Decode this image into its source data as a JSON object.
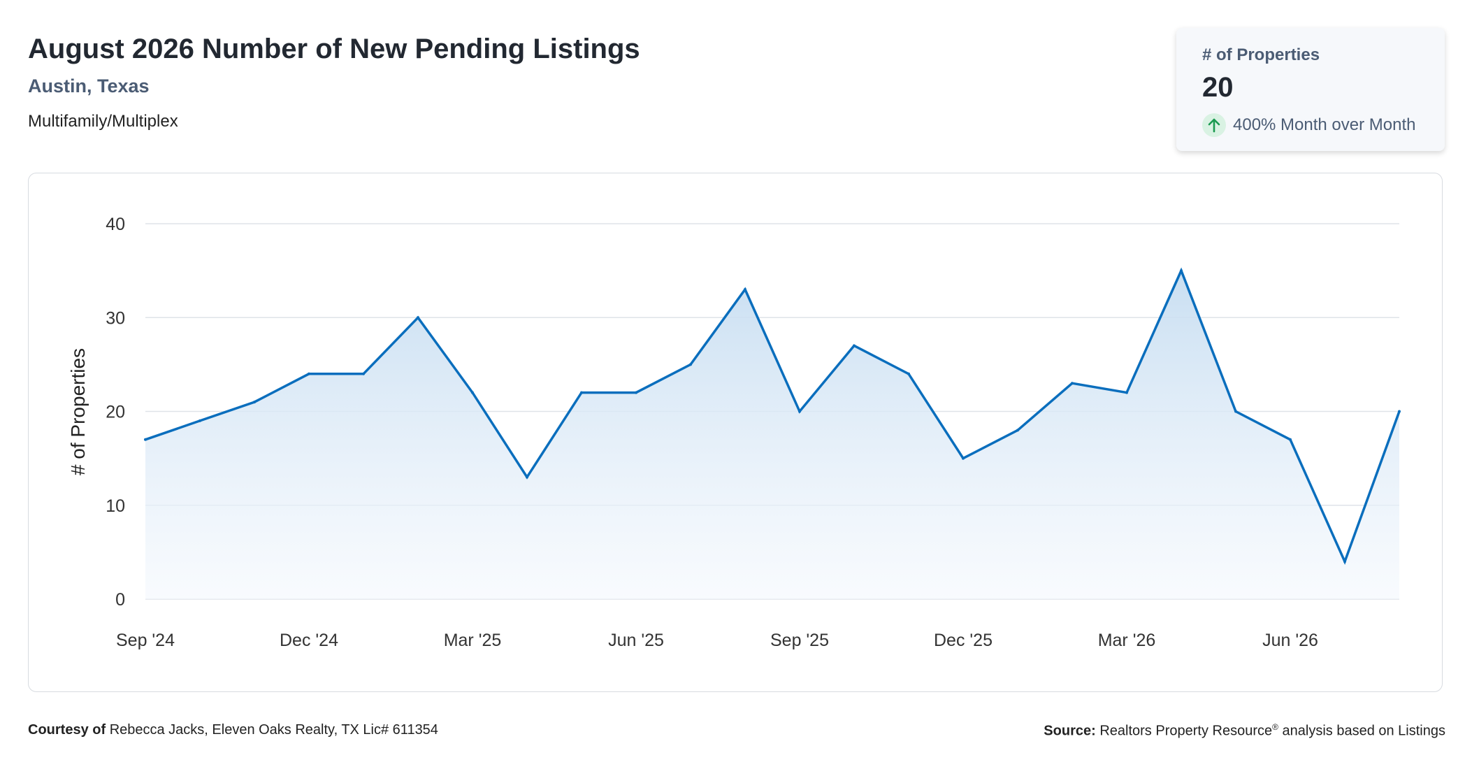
{
  "header": {
    "title": "August 2026 Number of New Pending Listings",
    "location": "Austin, Texas",
    "property_type": "Multifamily/Multiplex"
  },
  "kpi": {
    "label": "# of Properties",
    "value": "20",
    "change_text": "400% Month over Month",
    "change_direction": "up",
    "change_icon": "arrow-up-icon",
    "change_color": "#1a9a50"
  },
  "chart_data": {
    "type": "area",
    "ylabel": "# of Properties",
    "xlabel": "",
    "ylim": [
      0,
      40
    ],
    "y_ticks": [
      "0",
      "10",
      "20",
      "30",
      "40"
    ],
    "x_tick_labels": [
      "Sep '24",
      "Dec '24",
      "Mar '25",
      "Jun '25",
      "Sep '25",
      "Dec '25",
      "Mar '26",
      "Jun '26"
    ],
    "x_tick_indices": [
      0,
      3,
      6,
      9,
      12,
      15,
      18,
      21
    ],
    "x": [
      "2024-09",
      "2024-10",
      "2024-11",
      "2024-12",
      "2025-01",
      "2025-02",
      "2025-03",
      "2025-04",
      "2025-05",
      "2025-06",
      "2025-07",
      "2025-08",
      "2025-09",
      "2025-10",
      "2025-11",
      "2025-12",
      "2026-01",
      "2026-02",
      "2026-03",
      "2026-04",
      "2026-05",
      "2026-06",
      "2026-07",
      "2026-08"
    ],
    "series": [
      {
        "values": [
          17,
          19,
          21,
          24,
          24,
          30,
          22,
          13,
          22,
          22,
          25,
          33,
          20,
          27,
          24,
          15,
          18,
          23,
          22,
          35,
          20,
          17,
          4,
          20
        ],
        "color": "#0a6ebd"
      }
    ],
    "grid": true,
    "legend": "none"
  },
  "footer": {
    "courtesy_label": "Courtesy of",
    "courtesy_text": "Rebecca Jacks, Eleven Oaks Realty, TX Lic# 611354",
    "source_label": "Source:",
    "source_text_a": "Realtors Property Resource",
    "source_mark": "®",
    "source_text_b": "analysis based on Listings"
  }
}
